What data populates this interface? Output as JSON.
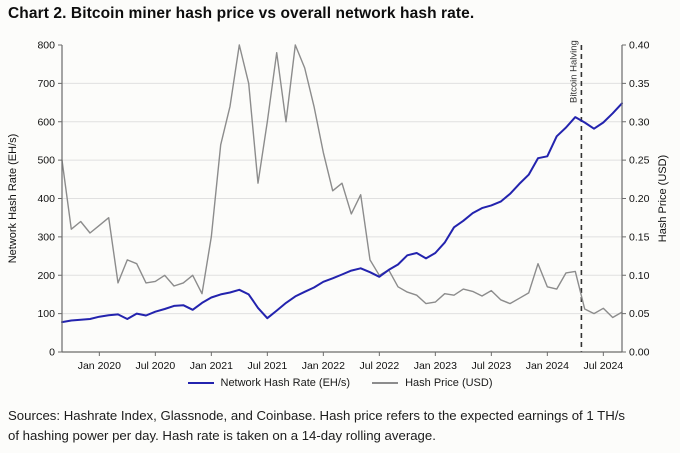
{
  "title": "Chart 2. Bitcoin miner hash price vs overall network hash rate.",
  "chart_data": {
    "type": "line",
    "grid": "horizontal",
    "legend_position": "bottom",
    "months": [
      "2019-09",
      "2019-10",
      "2019-11",
      "2019-12",
      "2020-01",
      "2020-02",
      "2020-03",
      "2020-04",
      "2020-05",
      "2020-06",
      "2020-07",
      "2020-08",
      "2020-09",
      "2020-10",
      "2020-11",
      "2020-12",
      "2021-01",
      "2021-02",
      "2021-03",
      "2021-04",
      "2021-05",
      "2021-06",
      "2021-07",
      "2021-08",
      "2021-09",
      "2021-10",
      "2021-11",
      "2021-12",
      "2022-01",
      "2022-02",
      "2022-03",
      "2022-04",
      "2022-05",
      "2022-06",
      "2022-07",
      "2022-08",
      "2022-09",
      "2022-10",
      "2022-11",
      "2022-12",
      "2023-01",
      "2023-02",
      "2023-03",
      "2023-04",
      "2023-05",
      "2023-06",
      "2023-07",
      "2023-08",
      "2023-09",
      "2023-10",
      "2023-11",
      "2023-12",
      "2024-01",
      "2024-02",
      "2024-03",
      "2024-04",
      "2024-05",
      "2024-06",
      "2024-07",
      "2024-08",
      "2024-09"
    ],
    "series": [
      {
        "name": "Network Hash Rate (EH/s)",
        "axis": "left",
        "color": "#2323ae",
        "stroke_width": 2,
        "values": [
          78,
          82,
          84,
          86,
          92,
          96,
          98,
          86,
          100,
          95,
          105,
          112,
          120,
          122,
          110,
          128,
          142,
          150,
          155,
          162,
          150,
          115,
          88,
          108,
          128,
          145,
          157,
          168,
          183,
          192,
          202,
          212,
          218,
          208,
          196,
          214,
          228,
          252,
          258,
          244,
          258,
          285,
          325,
          342,
          362,
          375,
          382,
          392,
          412,
          438,
          462,
          505,
          510,
          562,
          585,
          612,
          598,
          582,
          598,
          622,
          648
        ]
      },
      {
        "name": "Hash Price (USD)",
        "axis": "right",
        "color": "#8c8c8c",
        "stroke_width": 1.4,
        "values": [
          0.25,
          0.16,
          0.17,
          0.155,
          0.165,
          0.175,
          0.09,
          0.12,
          0.115,
          0.09,
          0.092,
          0.1,
          0.086,
          0.09,
          0.1,
          0.076,
          0.15,
          0.27,
          0.32,
          0.4,
          0.35,
          0.22,
          0.3,
          0.39,
          0.3,
          0.4,
          0.37,
          0.32,
          0.26,
          0.21,
          0.22,
          0.18,
          0.205,
          0.12,
          0.1,
          0.107,
          0.085,
          0.078,
          0.074,
          0.063,
          0.065,
          0.076,
          0.074,
          0.082,
          0.079,
          0.073,
          0.08,
          0.068,
          0.063,
          0.07,
          0.077,
          0.115,
          0.085,
          0.082,
          0.103,
          0.105,
          0.056,
          0.05,
          0.057,
          0.045,
          0.052
        ]
      }
    ],
    "left_axis": {
      "label": "Network Hash Rate (EH/s)",
      "min": 0,
      "max": 800,
      "ticks": [
        0,
        100,
        200,
        300,
        400,
        500,
        600,
        700,
        800
      ]
    },
    "right_axis": {
      "label": "Hash Price (USD)",
      "min": 0,
      "max": 0.4,
      "ticks": [
        "0.00",
        "0.05",
        "0.10",
        "0.15",
        "0.20",
        "0.25",
        "0.30",
        "0.35",
        "0.40"
      ]
    },
    "x_ticks": [
      {
        "label": "Jan 2020",
        "month": "2020-01"
      },
      {
        "label": "Jul 2020",
        "month": "2020-07"
      },
      {
        "label": "Jan 2021",
        "month": "2021-01"
      },
      {
        "label": "Jul 2021",
        "month": "2021-07"
      },
      {
        "label": "Jan 2022",
        "month": "2022-01"
      },
      {
        "label": "Jul 2022",
        "month": "2022-07"
      },
      {
        "label": "Jan 2023",
        "month": "2023-01"
      },
      {
        "label": "Jul 2023",
        "month": "2023-07"
      },
      {
        "label": "Jan 2024",
        "month": "2024-01"
      },
      {
        "label": "Jul 2024",
        "month": "2024-07"
      }
    ],
    "annotation": {
      "label": "Bitcoin Halving",
      "month": "2024-04",
      "style": "dashed-vertical",
      "color": "#333333"
    },
    "colors": {
      "grid": "#e0e0e0",
      "axis": "#6b6b6b",
      "tick_text": "#111111"
    }
  },
  "footer": {
    "line1": "Sources: Hashrate Index, Glassnode, and Coinbase. Hash price refers to the expected earnings of 1 TH/s",
    "line2": "of hashing power per day. Hash rate is taken on a 14-day rolling average."
  }
}
